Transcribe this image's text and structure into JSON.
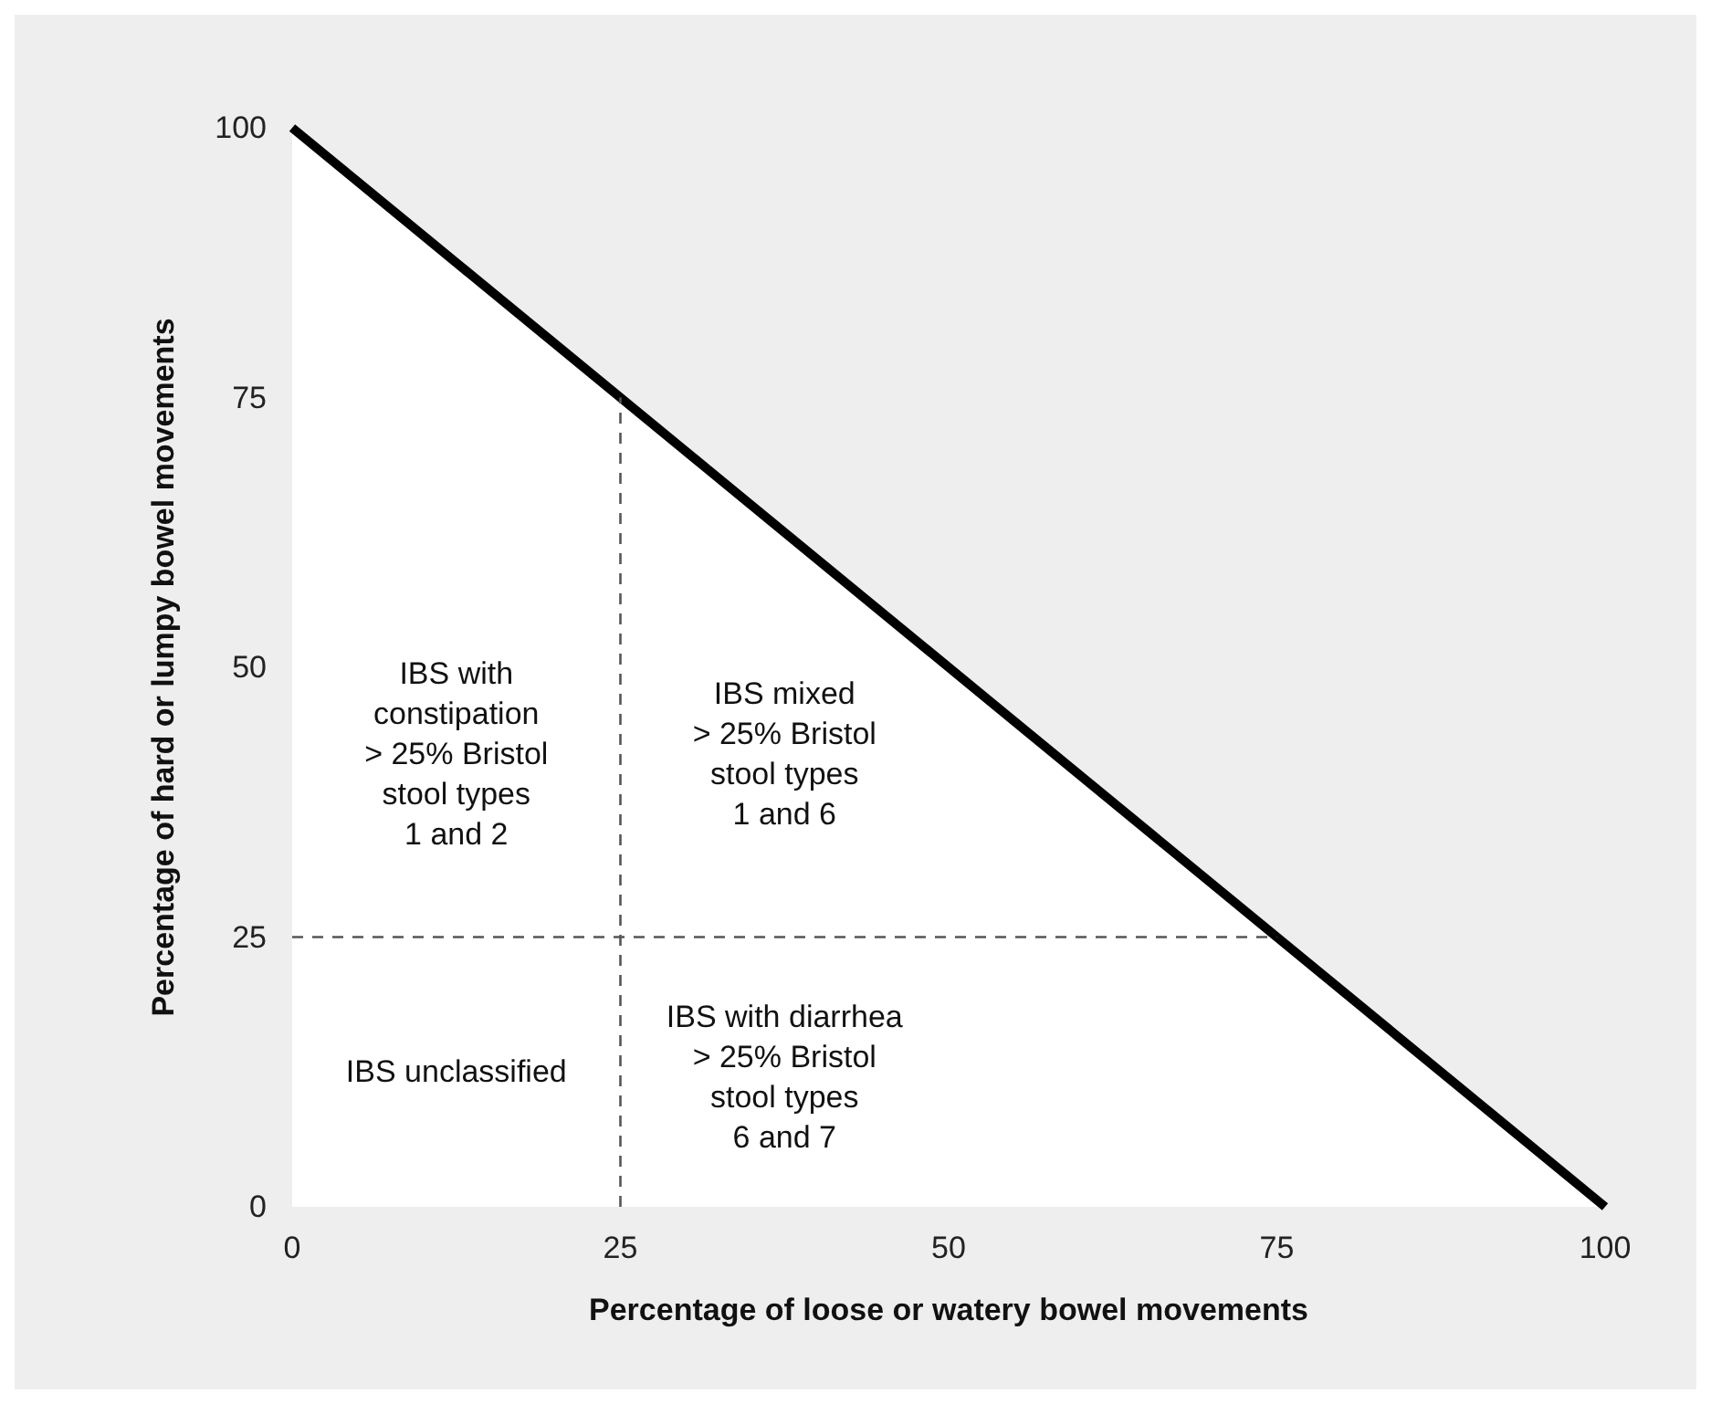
{
  "chart_data": {
    "type": "area",
    "xlabel": "Percentage of loose or watery bowel movements",
    "ylabel": "Percentage of hard or lumpy bowel movements",
    "xlim": [
      0,
      100
    ],
    "xticks": [
      0,
      25,
      50,
      75,
      100
    ],
    "ylim": [
      0,
      100
    ],
    "yticks": [
      0,
      25,
      50,
      75,
      100
    ],
    "grid": false,
    "marker": "none",
    "series": [
      {
        "color": "#000000",
        "x": [
          0,
          100
        ],
        "values": [
          100,
          0
        ],
        "line_style": "solid"
      },
      {
        "type": "line",
        "color": "#555555",
        "x": [
          25,
          25
        ],
        "values": [
          0,
          75
        ],
        "line_style": "dashed"
      },
      {
        "type": "line",
        "color": "#555555",
        "x": [
          0,
          75
        ],
        "values": [
          25,
          25
        ],
        "line_style": "dashed"
      }
    ],
    "annotations": [
      "IBS with\nconstipation\n> 25% Bristol\nstool types\n1 and 2",
      "IBS mixed\n> 25% Bristol\nstool types\n1 and 6",
      "IBS unclassified",
      "IBS with diarrhea\n> 25% Bristol\nstool types\n6 and 7"
    ]
  }
}
